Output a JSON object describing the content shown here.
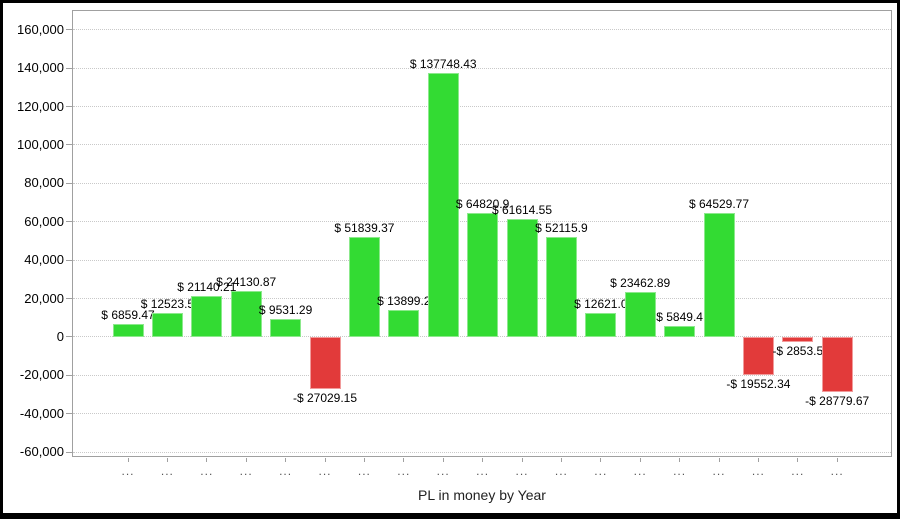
{
  "chart_data": {
    "type": "bar",
    "title": "PL in money by Year",
    "xlabel": "PL in money by Year",
    "ylabel": "",
    "legend": "none",
    "grid": "horizontal-dotted",
    "ylim": [
      -62500,
      170312
    ],
    "categories": [
      "...",
      "...",
      "...",
      "...",
      "...",
      "...",
      "...",
      "...",
      "...",
      "...",
      "...",
      "...",
      "...",
      "...",
      "...",
      "...",
      "...",
      "...",
      "..."
    ],
    "values": [
      6859.47,
      12523.5,
      21140.21,
      24130.87,
      9531.29,
      -27029.15,
      51839.37,
      13899.2,
      137748.43,
      64820.9,
      61614.55,
      52115.9,
      12621.0,
      23462.89,
      5849.4,
      64529.77,
      -19552.34,
      -2853.5,
      -28779.67
    ],
    "bar_labels": [
      "$ 6859.47",
      "$ 12523.5",
      "$ 21140.21",
      "$ 24130.87",
      "$ 9531.29",
      "-$ 27029.15",
      "$ 51839.37",
      "$ 13899.2",
      "$ 137748.43",
      "$ 64820.9",
      "$ 61614.55",
      "$ 52115.9",
      "$ 12621.0",
      "$ 23462.89",
      "$ 5849.4",
      "$ 64529.77",
      "-$ 19552.34",
      "-$ 2853.5",
      "-$ 28779.67"
    ],
    "y_tick_labels": [
      "160,000",
      "140,000",
      "120,000",
      "100,000",
      "80,000",
      "60,000",
      "40,000",
      "20,000",
      "0",
      "-20,000",
      "-40,000",
      "-60,000"
    ],
    "y_tick_values": [
      160000,
      140000,
      120000,
      100000,
      80000,
      60000,
      40000,
      20000,
      0,
      -20000,
      -40000,
      -60000
    ],
    "colors": {
      "positive_bar": "#33db33",
      "positive_border": "#8ce98c",
      "negative_bar": "#e23a3a",
      "negative_border": "#f19b9b",
      "gridline": "#c9c9c9",
      "axis": "#a0a0a0",
      "background": "#ffffff",
      "window_border": "#000000"
    }
  }
}
